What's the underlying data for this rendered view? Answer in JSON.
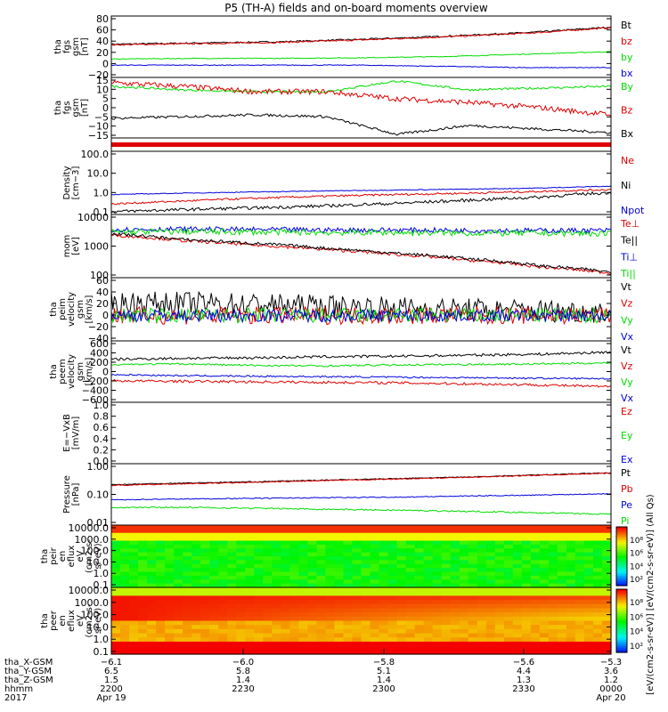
{
  "title": "P5 (TH-A) fields and on-board moments overview",
  "colors": {
    "black": "#000000",
    "red": "#e00000",
    "green": "#00dd00",
    "blue": "#0000e0"
  },
  "chart_data": [
    {
      "type": "line",
      "ylabel": [
        "tha",
        "fgs",
        "gsm",
        "[nT]"
      ],
      "ylim": [
        -20,
        80
      ],
      "yticks": [
        "80",
        "60",
        "40",
        "20",
        "0",
        "−20"
      ],
      "series": [
        {
          "name": "Bt",
          "color": "black",
          "values": [
            34,
            36,
            38,
            42,
            47,
            53,
            62
          ],
          "noise": 1.2
        },
        {
          "name": "bz",
          "color": "red",
          "values": [
            33,
            35,
            37,
            41,
            46,
            52,
            61
          ],
          "noise": 1.2
        },
        {
          "name": "by",
          "color": "green",
          "values": [
            10,
            11,
            11,
            12,
            14,
            18,
            22
          ],
          "noise": 0.6
        },
        {
          "name": "bx",
          "color": "blue",
          "values": [
            0,
            0,
            0,
            0,
            -2,
            -4,
            -4
          ],
          "noise": 0.6
        }
      ]
    },
    {
      "type": "line",
      "ylabel": [
        "tha",
        "fgs",
        "gsm",
        "[nT]"
      ],
      "ylim": [
        -18,
        16
      ],
      "yticks": [
        "15",
        "10",
        "5",
        "0",
        "−5",
        "−10",
        "−15"
      ],
      "series": [
        {
          "name": "By",
          "color": "green",
          "values": [
            11,
            9,
            8,
            8,
            14,
            9,
            10,
            11
          ],
          "noise": 0.6
        },
        {
          "name": "Bz",
          "color": "red",
          "values": [
            13,
            11,
            8,
            8,
            4,
            2,
            -1,
            -5
          ],
          "noise": 1.5
        },
        {
          "name": "Bx",
          "color": "black",
          "values": [
            -7,
            -6,
            -5,
            -6,
            -16,
            -11,
            -13,
            -15
          ],
          "noise": 0.7
        }
      ]
    },
    {
      "type": "bar",
      "series": [
        {
          "name": "",
          "color": "red",
          "values": [
            1
          ]
        }
      ]
    },
    {
      "type": "line",
      "ylabel": [
        "Density",
        "[cm−3]"
      ],
      "log": true,
      "ylim": [
        0.1,
        200
      ],
      "yticks": [
        "100.0",
        "10.0",
        "1.0",
        "0.1"
      ],
      "series": [
        {
          "name": "Ne",
          "color": "red",
          "values": [
            0.35,
            0.5,
            0.7,
            0.9,
            1.1,
            1.3,
            1.6,
            2.0
          ],
          "noise": 0.05
        },
        {
          "name": "Ni",
          "color": "black",
          "values": [
            0.14,
            0.18,
            0.22,
            0.28,
            0.38,
            0.55,
            0.8,
            1.4
          ],
          "noise": 0.08
        },
        {
          "name": "Npot",
          "color": "blue",
          "values": [
            1.1,
            1.3,
            1.5,
            1.7,
            1.9,
            2.1,
            2.4,
            3.0
          ],
          "noise": 0.02
        }
      ]
    },
    {
      "type": "line",
      "ylabel": [
        "mom",
        "[eV]"
      ],
      "log": true,
      "ylim": [
        30,
        10000
      ],
      "yticks": [
        "10000",
        "1000",
        "100"
      ],
      "series": [
        {
          "name": "Te⊥",
          "color": "red",
          "values": [
            1500,
            900,
            600,
            400,
            250,
            150,
            80,
            45
          ],
          "noise": 0.06
        },
        {
          "name": "Te||",
          "color": "black",
          "values": [
            1700,
            1000,
            700,
            450,
            280,
            170,
            90,
            50
          ],
          "noise": 0.06
        },
        {
          "name": "Ti⊥",
          "color": "blue",
          "values": [
            2500,
            2600,
            2500,
            2400,
            2400,
            2300,
            2300,
            2300
          ],
          "noise": 0.1
        },
        {
          "name": "Ti||",
          "color": "green",
          "values": [
            2000,
            2100,
            2000,
            1900,
            1900,
            1800,
            1800,
            1700
          ],
          "noise": 0.12
        }
      ]
    },
    {
      "type": "line",
      "ylabel": [
        "tha",
        "peim",
        "velocity",
        "gsm",
        "[km/s]"
      ],
      "ylim": [
        -40,
        60
      ],
      "yticks": [
        "60",
        "40",
        "20",
        "0",
        "−20",
        "−40"
      ],
      "series": [
        {
          "name": "Vt",
          "color": "black",
          "values": [
            20,
            20,
            18,
            15,
            12,
            10,
            8,
            6
          ],
          "noise": 18
        },
        {
          "name": "Vz",
          "color": "red",
          "values": [
            0,
            0,
            0,
            0,
            0,
            0,
            0,
            0
          ],
          "noise": 14
        },
        {
          "name": "Vy",
          "color": "green",
          "values": [
            0,
            0,
            0,
            0,
            0,
            0,
            0,
            0
          ],
          "noise": 12
        },
        {
          "name": "Vx",
          "color": "blue",
          "values": [
            0,
            0,
            0,
            0,
            0,
            0,
            0,
            0
          ],
          "noise": 10
        }
      ]
    },
    {
      "type": "line",
      "ylabel": [
        "tha",
        "peem",
        "velocity",
        "gsm",
        "[km/s]"
      ],
      "ylim": [
        -600,
        600
      ],
      "yticks": [
        "600",
        "400",
        "200",
        "0",
        "−200",
        "−400",
        "−600"
      ],
      "series": [
        {
          "name": "Vt",
          "color": "black",
          "values": [
            240,
            260,
            270,
            290,
            300,
            320,
            340,
            380
          ],
          "noise": 25
        },
        {
          "name": "Vz",
          "color": "red",
          "values": [
            -180,
            -190,
            -200,
            -210,
            -220,
            -240,
            -260,
            -300
          ],
          "noise": 25
        },
        {
          "name": "Vy",
          "color": "green",
          "values": [
            140,
            150,
            120,
            110,
            130,
            140,
            150,
            170
          ],
          "noise": 18
        },
        {
          "name": "Vx",
          "color": "blue",
          "values": [
            -60,
            -80,
            -90,
            -100,
            -110,
            -120,
            -130,
            -140
          ],
          "noise": 15
        }
      ]
    },
    {
      "type": "line",
      "ylabel": [
        "E=−VxB",
        "[mV/m]"
      ],
      "ylim": [
        0,
        1
      ],
      "yticks": [
        "1.0",
        "0.8",
        "0.6",
        "0.4",
        "0.2",
        "0.0"
      ],
      "series": [
        {
          "name": "Ez",
          "color": "red",
          "values": []
        },
        {
          "name": "Ey",
          "color": "green",
          "values": []
        },
        {
          "name": "Ex",
          "color": "blue",
          "values": []
        }
      ]
    },
    {
      "type": "line",
      "ylabel": [
        "Pressure",
        "[nPa]"
      ],
      "log": true,
      "ylim": [
        0.01,
        5
      ],
      "yticks": [
        "1.00",
        "0.10",
        "0.01"
      ],
      "series": [
        {
          "name": "Pt",
          "color": "black",
          "values": [
            0.6,
            0.7,
            0.8,
            0.95,
            1.1,
            1.3,
            1.6,
            2.0
          ],
          "noise": 0.02
        },
        {
          "name": "Pb",
          "color": "red",
          "values": [
            0.55,
            0.65,
            0.75,
            0.9,
            1.05,
            1.25,
            1.55,
            1.9
          ],
          "noise": 0.02
        },
        {
          "name": "Pe",
          "color": "blue",
          "values": [
            0.13,
            0.14,
            0.15,
            0.16,
            0.17,
            0.19,
            0.21,
            0.24
          ],
          "noise": 0.02
        },
        {
          "name": "Pi",
          "color": "green",
          "values": [
            0.06,
            0.06,
            0.055,
            0.05,
            0.045,
            0.04,
            0.035,
            0.03
          ],
          "noise": 0.03
        }
      ]
    },
    {
      "type": "heatmap",
      "ylabel": [
        "tha",
        "peir",
        "en",
        "eflux",
        "eV",
        "(cm2-s-",
        "sr-eV)"
      ],
      "yticks": [
        "10000.0",
        "1000.0",
        "100.0",
        "10.0",
        "1.0",
        "0.1"
      ]
    },
    {
      "type": "heatmap",
      "ylabel": [
        "tha",
        "peer",
        "en",
        "eflux",
        "eV",
        "(cm2-s-",
        "sr-eV)"
      ],
      "yticks": [
        "10000.0",
        "1000.0",
        "100.0",
        "10.0",
        "1.0",
        "0.1"
      ]
    }
  ],
  "colorbars": [
    {
      "ticks": [
        "10⁸",
        "10⁶",
        "10⁴",
        "10²"
      ]
    },
    {
      "ticks": [
        "10⁸",
        "10⁶",
        "10⁴",
        "10²"
      ]
    }
  ],
  "colorbar_label": "[eV/(cm2-s-sr-eV)] [eV/(cm2-s-sr-eV)] (All Qs)",
  "x_axis": {
    "rows": [
      {
        "label": "tha_X-GSM",
        "values": [
          "−6.1",
          "−6.0",
          "−5.8",
          "−5.6",
          "−5.3"
        ]
      },
      {
        "label": "tha_Y-GSM",
        "values": [
          "6.5",
          "5.8",
          "5.1",
          "4.4",
          "3.6"
        ]
      },
      {
        "label": "tha_Z-GSM",
        "values": [
          "1.5",
          "1.4",
          "1.4",
          "1.3",
          "1.2"
        ]
      },
      {
        "label": "hhmm",
        "values": [
          "2200",
          "2230",
          "2300",
          "2330",
          "0000"
        ]
      },
      {
        "label": "2017",
        "values": [
          "Apr 19",
          "",
          "",
          "",
          "Apr 20"
        ]
      }
    ]
  }
}
